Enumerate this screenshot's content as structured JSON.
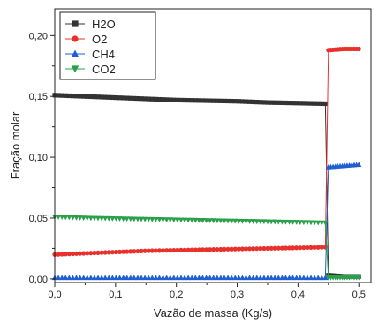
{
  "chart_data": {
    "type": "scatter",
    "title": "",
    "xlabel": "Vazão de massa (Kg/s)",
    "ylabel": "Fração molar",
    "xlim": [
      0.0,
      0.52
    ],
    "ylim": [
      -0.003,
      0.222
    ],
    "x_ticks": [
      0.0,
      0.1,
      0.2,
      0.3,
      0.4,
      0.5
    ],
    "x_tick_labels": [
      "0,0",
      "0,1",
      "0,2",
      "0,3",
      "0,4",
      "0,5"
    ],
    "y_ticks": [
      0.0,
      0.05,
      0.1,
      0.15,
      0.2
    ],
    "y_tick_labels": [
      "0,00",
      "0,05",
      "0,10",
      "0,15",
      "0,20"
    ],
    "grid": false,
    "legend_position": "top-left",
    "transition_x": 0.448,
    "series": [
      {
        "name": "H2O",
        "marker": "square",
        "color": "#333333",
        "x": [
          0.0,
          0.05,
          0.1,
          0.15,
          0.2,
          0.25,
          0.3,
          0.35,
          0.4,
          0.445,
          0.45,
          0.475,
          0.5
        ],
        "y": [
          0.151,
          0.15,
          0.149,
          0.148,
          0.147,
          0.1465,
          0.146,
          0.145,
          0.1445,
          0.144,
          0.003,
          0.002,
          0.002
        ]
      },
      {
        "name": "O2",
        "marker": "circle",
        "color": "#e8302c",
        "x": [
          0.0,
          0.05,
          0.1,
          0.15,
          0.2,
          0.25,
          0.3,
          0.35,
          0.4,
          0.445,
          0.45,
          0.475,
          0.5
        ],
        "y": [
          0.02,
          0.021,
          0.022,
          0.023,
          0.0235,
          0.024,
          0.0245,
          0.025,
          0.0255,
          0.026,
          0.188,
          0.189,
          0.189
        ]
      },
      {
        "name": "CH4",
        "marker": "triangle-up",
        "color": "#1f5fd1",
        "x": [
          0.0,
          0.05,
          0.1,
          0.15,
          0.2,
          0.25,
          0.3,
          0.35,
          0.4,
          0.445,
          0.45,
          0.475,
          0.5
        ],
        "y": [
          0.001,
          0.001,
          0.001,
          0.001,
          0.001,
          0.001,
          0.001,
          0.001,
          0.001,
          0.001,
          0.092,
          0.093,
          0.094
        ]
      },
      {
        "name": "CO2",
        "marker": "triangle-down",
        "color": "#2aa04a",
        "x": [
          0.0,
          0.05,
          0.1,
          0.15,
          0.2,
          0.25,
          0.3,
          0.35,
          0.4,
          0.445,
          0.45,
          0.475,
          0.5
        ],
        "y": [
          0.051,
          0.05,
          0.0495,
          0.049,
          0.0485,
          0.048,
          0.0475,
          0.047,
          0.0465,
          0.046,
          0.001,
          0.001,
          0.001
        ]
      }
    ]
  }
}
